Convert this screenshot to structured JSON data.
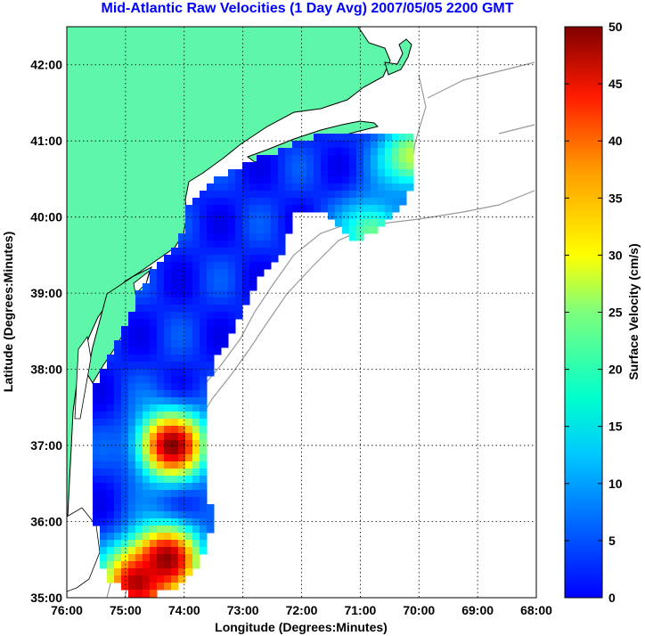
{
  "title": "Mid-Atlantic Raw Velocities (1 Day Avg) 2007/05/05 2200 GMT",
  "map": {
    "xlabel": "Longitude (Degrees:Minutes)",
    "ylabel": "Latitude (Degrees:Minutes)",
    "lon_range": [
      -76,
      -68
    ],
    "lat_range": [
      35,
      42.5
    ],
    "lon_ticks": [
      "76:00",
      "75:00",
      "74:00",
      "73:00",
      "72:00",
      "71:00",
      "70:00",
      "69:00",
      "68:00"
    ],
    "lat_ticks": [
      "35:00",
      "36:00",
      "37:00",
      "38:00",
      "39:00",
      "40:00",
      "41:00",
      "42:00"
    ],
    "grid": "dotted",
    "land_color": "#5ef6a8",
    "coast_color": "#000000",
    "bathymetry_color": "#999999"
  },
  "colorbar": {
    "label": "Surface Velocity (cm/s)",
    "ticks": [
      "0",
      "5",
      "10",
      "15",
      "20",
      "25",
      "30",
      "35",
      "40",
      "45",
      "50"
    ],
    "range": [
      0,
      50
    ],
    "colormap": "jet"
  },
  "velocity_field": {
    "mean_speed_cm_s": 8,
    "hotspots": [
      {
        "lon": -74.2,
        "lat": 37.0,
        "speed_cm_s": 50
      },
      {
        "lon": -74.3,
        "lat": 35.5,
        "speed_cm_s": 50
      },
      {
        "lon": -74.8,
        "lat": 35.2,
        "speed_cm_s": 48
      },
      {
        "lon": -70.1,
        "lat": 40.8,
        "speed_cm_s": 28
      },
      {
        "lon": -70.8,
        "lat": 39.8,
        "speed_cm_s": 24
      }
    ]
  }
}
